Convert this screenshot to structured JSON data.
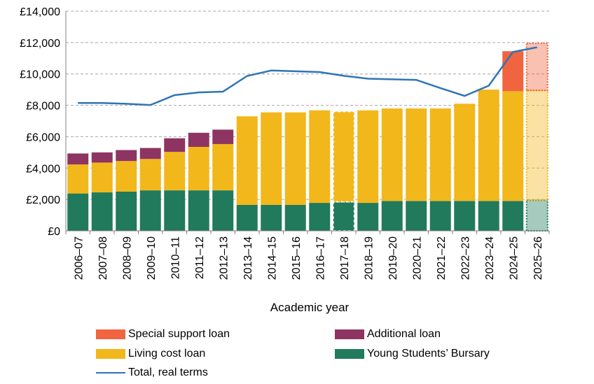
{
  "chart_data": {
    "type": "bar",
    "stacked": true,
    "xlabel": "Academic year",
    "ylabel": "",
    "ylim": [
      0,
      14000
    ],
    "yticks": [
      0,
      2000,
      4000,
      6000,
      8000,
      10000,
      12000,
      14000
    ],
    "ytick_labels": [
      "£0",
      "£2,000",
      "£4,000",
      "£6,000",
      "£8,000",
      "£10,000",
      "£12,000",
      "£14,000"
    ],
    "grid": "horizontal dashed",
    "categories": [
      "2006–07",
      "2007–08",
      "2008–09",
      "2009–10",
      "2010–11",
      "2011–12",
      "2012–13",
      "2013–14",
      "2014–15",
      "2015–16",
      "2016–17",
      "2017–18",
      "2018–19",
      "2019–20",
      "2020–21",
      "2021–22",
      "2022–23",
      "2023–24",
      "2024–25",
      "2025–26"
    ],
    "series": [
      {
        "name": "Young Students’ Bursary",
        "color": "#217A5B",
        "values": [
          2380,
          2450,
          2500,
          2580,
          2580,
          2580,
          2580,
          1650,
          1650,
          1650,
          1780,
          1850,
          1780,
          1900,
          1900,
          1900,
          1900,
          1900,
          1900,
          1950
        ]
      },
      {
        "name": "Living cost loan",
        "color": "#F2B71B",
        "values": [
          1850,
          1900,
          1950,
          2000,
          2450,
          2770,
          2950,
          5650,
          5900,
          5900,
          5900,
          5750,
          5900,
          5900,
          5900,
          5900,
          6200,
          7100,
          7000,
          7000
        ]
      },
      {
        "name": "Additional loan",
        "color": "#8E3463",
        "values": [
          700,
          650,
          700,
          700,
          870,
          900,
          920,
          0,
          0,
          0,
          0,
          0,
          0,
          0,
          0,
          0,
          0,
          0,
          0,
          0
        ]
      },
      {
        "name": "Special support loan",
        "color": "#F0643F",
        "values": [
          0,
          0,
          0,
          0,
          0,
          0,
          0,
          0,
          0,
          0,
          0,
          0,
          0,
          0,
          0,
          0,
          0,
          0,
          2550,
          3000
        ]
      }
    ],
    "line_series": {
      "name": "Total, real terms",
      "color": "#2E75B6",
      "values": [
        8150,
        8150,
        8100,
        8020,
        8650,
        8820,
        8870,
        9870,
        10220,
        10170,
        10120,
        9880,
        9700,
        9660,
        9620,
        9100,
        8600,
        9250,
        11400,
        11700
      ]
    },
    "styled_bars": {
      "dotted": [
        "2017–18"
      ],
      "projected": [
        "2025–26"
      ]
    },
    "legend_placement": "bottom"
  }
}
